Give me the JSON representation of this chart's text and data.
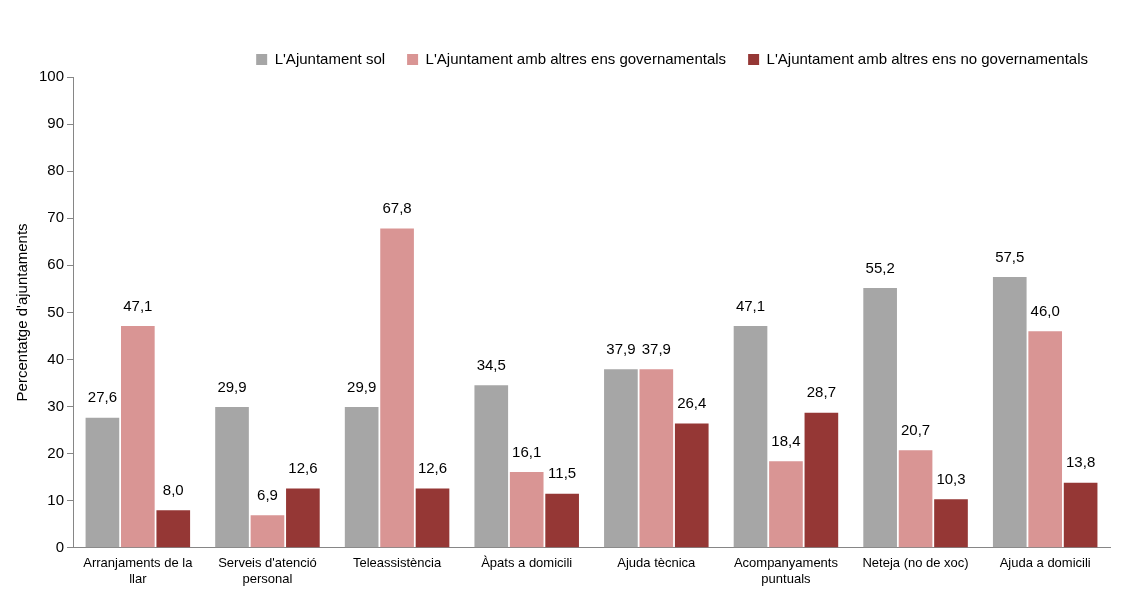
{
  "chart_data": {
    "type": "bar",
    "ylabel": "Percentatge d'ajuntaments",
    "categories": [
      "Arranjaments de la llar",
      "Serveis d'atenció personal",
      "Teleassistència",
      "Àpats a domicili",
      "Ajuda tècnica",
      "Acompanyaments puntuals",
      "Neteja (no de xoc)",
      "Ajuda a domicili"
    ],
    "series": [
      {
        "name": "L'Ajuntament sol",
        "color": "#a6a6a6",
        "values": [
          27.6,
          29.9,
          29.9,
          34.5,
          37.9,
          47.1,
          55.2,
          57.5
        ],
        "value_labels": [
          "27,6",
          "29,9",
          "29,9",
          "34,5",
          "37,9",
          "47,1",
          "55,2",
          "57,5"
        ]
      },
      {
        "name": "L'Ajuntament amb altres ens governamentals",
        "color": "#d99594",
        "values": [
          47.1,
          6.9,
          67.8,
          16.1,
          37.9,
          18.4,
          20.7,
          46.0
        ],
        "value_labels": [
          "47,1",
          "6,9",
          "67,8",
          "16,1",
          "37,9",
          "18,4",
          "20,7",
          "46,0"
        ]
      },
      {
        "name": "L'Ajuntament amb altres ens no governamentals",
        "color": "#953735",
        "values": [
          8.0,
          12.6,
          12.6,
          11.5,
          26.4,
          28.7,
          10.3,
          13.8
        ],
        "value_labels": [
          "8,0",
          "12,6",
          "12,6",
          "11,5",
          "26,4",
          "28,7",
          "10,3",
          "13,8"
        ]
      }
    ],
    "ylim": [
      0,
      100
    ],
    "yticks": [
      0,
      10,
      20,
      30,
      40,
      50,
      60,
      70,
      80,
      90,
      100
    ],
    "grid": false,
    "legend": "top right"
  }
}
